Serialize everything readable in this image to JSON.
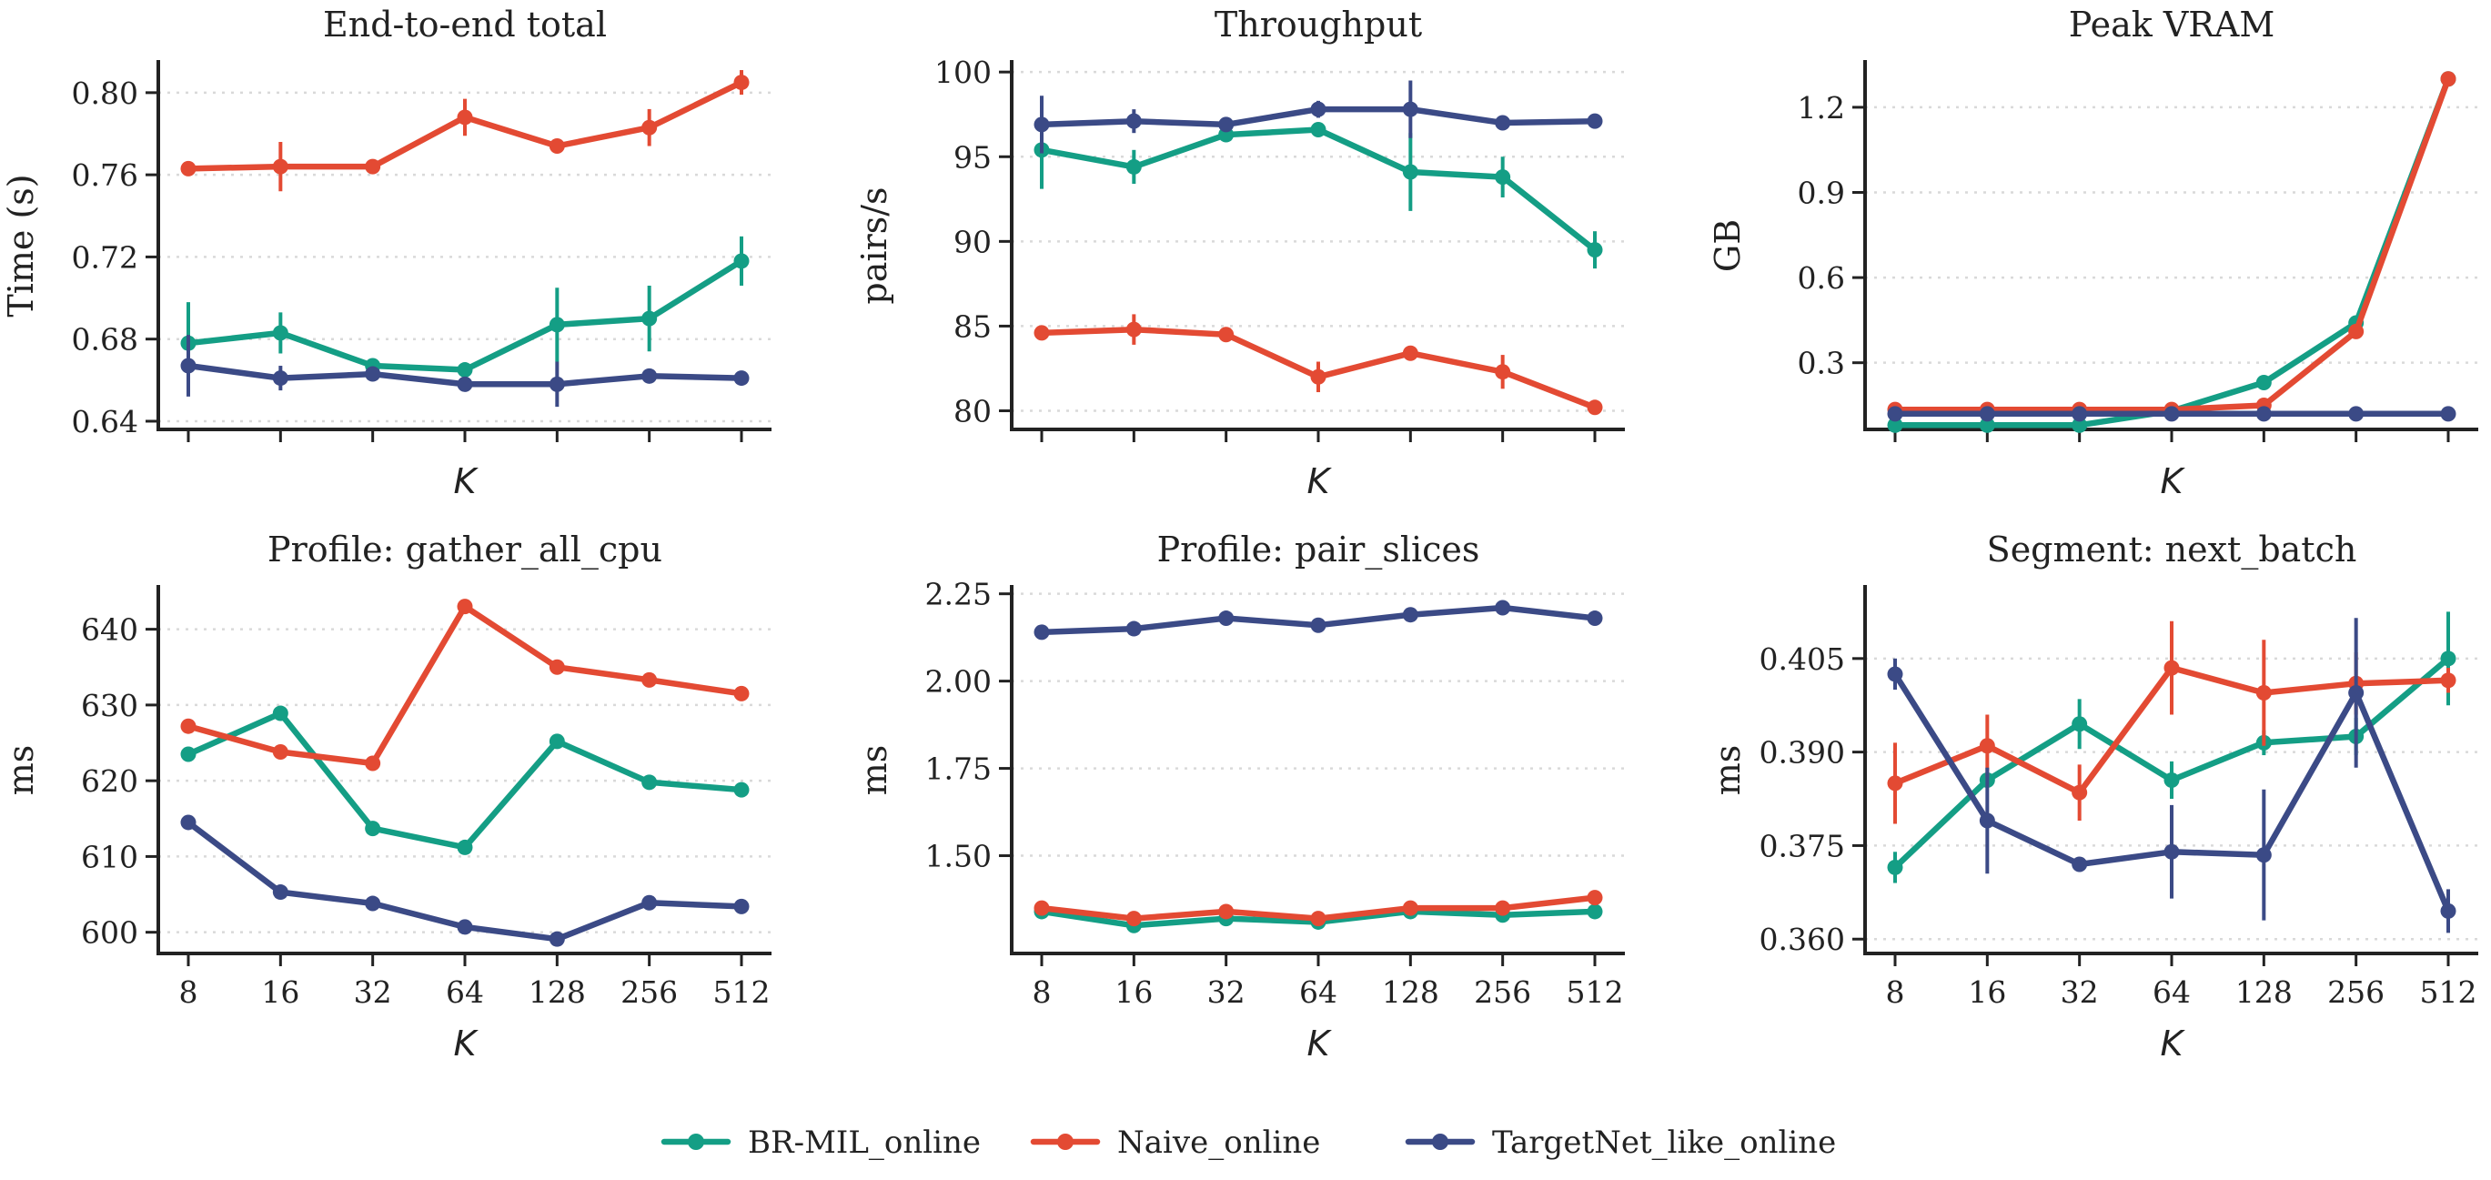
{
  "colors": {
    "BR-MIL_online": "#149e85",
    "Naive_online": "#e34a33",
    "TargetNet_like_online": "#3b4a86"
  },
  "legend": [
    "BR-MIL_online",
    "Naive_online",
    "TargetNet_like_online"
  ],
  "chart_data": [
    {
      "type": "line",
      "title": "End-to-end total",
      "xlabel": "K",
      "ylabel": "Time (s)",
      "categories": [
        "8",
        "16",
        "32",
        "64",
        "128",
        "256",
        "512"
      ],
      "ylim": [
        0.636,
        0.815
      ],
      "yticks": [
        "0.64",
        "0.68",
        "0.72",
        "0.76",
        "0.80"
      ],
      "show_xticklabels": false,
      "series": [
        {
          "name": "BR-MIL_online",
          "values": [
            0.678,
            0.683,
            0.667,
            0.665,
            0.687,
            0.69,
            0.718
          ],
          "err": [
            0.02,
            0.01,
            0.003,
            0.003,
            0.018,
            0.016,
            0.012
          ]
        },
        {
          "name": "Naive_online",
          "values": [
            0.763,
            0.764,
            0.764,
            0.788,
            0.774,
            0.783,
            0.805
          ],
          "err": [
            0.002,
            0.012,
            0.002,
            0.009,
            0.003,
            0.009,
            0.006
          ]
        },
        {
          "name": "TargetNet_like_online",
          "values": [
            0.667,
            0.661,
            0.663,
            0.658,
            0.658,
            0.662,
            0.661
          ],
          "err": [
            0.015,
            0.006,
            0.003,
            0.003,
            0.011,
            0.003,
            0.002
          ]
        }
      ]
    },
    {
      "type": "line",
      "title": "Throughput",
      "xlabel": "K",
      "ylabel": "pairs/s",
      "categories": [
        "8",
        "16",
        "32",
        "64",
        "128",
        "256",
        "512"
      ],
      "ylim": [
        78.9,
        100.6
      ],
      "yticks": [
        "80",
        "85",
        "90",
        "95",
        "100"
      ],
      "show_xticklabels": false,
      "series": [
        {
          "name": "BR-MIL_online",
          "values": [
            95.4,
            94.4,
            96.3,
            96.6,
            94.1,
            93.8,
            89.5
          ],
          "err": [
            2.3,
            1.0,
            0.3,
            0.3,
            2.3,
            1.2,
            1.1
          ]
        },
        {
          "name": "Naive_online",
          "values": [
            84.6,
            84.8,
            84.5,
            82.0,
            83.4,
            82.3,
            80.2
          ],
          "err": [
            0.2,
            0.9,
            0.2,
            0.9,
            0.3,
            1.0,
            0.4
          ]
        },
        {
          "name": "TargetNet_like_online",
          "values": [
            96.9,
            97.1,
            96.9,
            97.8,
            97.8,
            97.0,
            97.1
          ],
          "err": [
            1.7,
            0.7,
            0.3,
            0.5,
            1.7,
            0.3,
            0.2
          ]
        }
      ]
    },
    {
      "type": "line",
      "title": "Peak VRAM",
      "xlabel": "K",
      "ylabel": "GB",
      "categories": [
        "8",
        "16",
        "32",
        "64",
        "128",
        "256",
        "512"
      ],
      "ylim": [
        0.065,
        1.36
      ],
      "yticks": [
        "0.3",
        "0.6",
        "0.9",
        "1.2"
      ],
      "show_xticklabels": false,
      "series": [
        {
          "name": "BR-MIL_online",
          "values": [
            0.08,
            0.08,
            0.08,
            0.13,
            0.23,
            0.44,
            1.3
          ],
          "err": [
            0,
            0,
            0,
            0,
            0,
            0,
            0
          ]
        },
        {
          "name": "Naive_online",
          "values": [
            0.135,
            0.135,
            0.135,
            0.135,
            0.15,
            0.41,
            1.3
          ],
          "err": [
            0,
            0,
            0,
            0,
            0,
            0,
            0
          ]
        },
        {
          "name": "TargetNet_like_online",
          "values": [
            0.12,
            0.12,
            0.12,
            0.12,
            0.12,
            0.12,
            0.12
          ],
          "err": [
            0,
            0,
            0,
            0,
            0,
            0,
            0
          ]
        }
      ]
    },
    {
      "type": "line",
      "title": "Profile: gather_all_cpu",
      "xlabel": "K",
      "ylabel": "ms",
      "categories": [
        "8",
        "16",
        "32",
        "64",
        "128",
        "256",
        "512"
      ],
      "ylim": [
        597.2,
        645.6
      ],
      "yticks": [
        "600",
        "610",
        "620",
        "630",
        "640"
      ],
      "show_xticklabels": true,
      "series": [
        {
          "name": "BR-MIL_online",
          "values": [
            623.5,
            628.9,
            613.7,
            611.2,
            625.2,
            619.8,
            618.8
          ],
          "err": [
            0,
            0,
            0,
            0,
            0,
            0,
            0
          ]
        },
        {
          "name": "Naive_online",
          "values": [
            627.2,
            623.8,
            622.3,
            643.0,
            635.0,
            633.3,
            631.5
          ],
          "err": [
            0,
            0,
            0,
            0,
            0,
            0,
            0
          ]
        },
        {
          "name": "TargetNet_like_online",
          "values": [
            614.5,
            605.3,
            603.8,
            600.7,
            599.1,
            603.9,
            603.4
          ],
          "err": [
            0,
            0,
            0,
            0,
            0,
            0,
            0
          ]
        }
      ]
    },
    {
      "type": "line",
      "title": "Profile: pair_slices",
      "xlabel": "K",
      "ylabel": "ms",
      "categories": [
        "8",
        "16",
        "32",
        "64",
        "128",
        "256",
        "512"
      ],
      "ylim": [
        1.22,
        2.27
      ],
      "yticks": [
        "1.50",
        "1.75",
        "2.00",
        "2.25"
      ],
      "show_xticklabels": true,
      "series": [
        {
          "name": "BR-MIL_online",
          "values": [
            1.34,
            1.3,
            1.32,
            1.31,
            1.34,
            1.33,
            1.34
          ],
          "err": [
            0,
            0,
            0,
            0,
            0,
            0,
            0
          ]
        },
        {
          "name": "Naive_online",
          "values": [
            1.35,
            1.32,
            1.34,
            1.32,
            1.35,
            1.35,
            1.38
          ],
          "err": [
            0,
            0,
            0,
            0,
            0,
            0,
            0
          ]
        },
        {
          "name": "TargetNet_like_online",
          "values": [
            2.14,
            2.15,
            2.18,
            2.16,
            2.19,
            2.21,
            2.18
          ],
          "err": [
            0,
            0,
            0,
            0,
            0,
            0,
            0
          ]
        }
      ]
    },
    {
      "type": "line",
      "title": "Segment: next_batch",
      "xlabel": "K",
      "ylabel": "ms",
      "categories": [
        "8",
        "16",
        "32",
        "64",
        "128",
        "256",
        "512"
      ],
      "ylim": [
        0.3577,
        0.4165
      ],
      "yticks": [
        "0.360",
        "0.375",
        "0.390",
        "0.405"
      ],
      "show_xticklabels": true,
      "series": [
        {
          "name": "BR-MIL_online",
          "values": [
            0.3715,
            0.3855,
            0.3945,
            0.3855,
            0.3915,
            0.3925,
            0.405
          ],
          "err": [
            0.0025,
            0.001,
            0.004,
            0.003,
            0.002,
            0.003,
            0.0075
          ]
        },
        {
          "name": "Naive_online",
          "values": [
            0.385,
            0.391,
            0.3835,
            0.4035,
            0.3995,
            0.401,
            0.4015
          ],
          "err": [
            0.0065,
            0.005,
            0.0045,
            0.0075,
            0.0085,
            0.005,
            0.002
          ]
        },
        {
          "name": "TargetNet_like_online",
          "values": [
            0.4025,
            0.379,
            0.372,
            0.374,
            0.3735,
            0.3995,
            0.3645
          ],
          "err": [
            0.0025,
            0.0085,
            0.001,
            0.0075,
            0.0105,
            0.012,
            0.0035
          ]
        }
      ]
    }
  ]
}
